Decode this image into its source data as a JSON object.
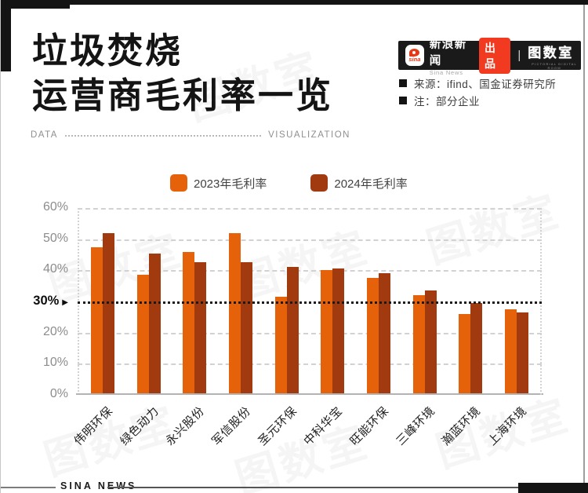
{
  "header": {
    "title_line1": "垃圾焚烧",
    "title_line2": "运营商毛利率一览",
    "divider_left": "DATA",
    "divider_right": "VISUALIZATION"
  },
  "brand": {
    "sina_logo_text": "sina",
    "name_cn": "新浪新闻",
    "name_en": "Sina News",
    "badge": "出品",
    "separator": "|",
    "studio": "图数室",
    "studio_tagline": "PICTORIAL DIGITAL ROOM"
  },
  "meta": {
    "source": "来源：ifind、国金证券研究所",
    "note": "注：部分企业"
  },
  "footer": {
    "label": "SINA NEWS"
  },
  "watermark": {
    "text": "图数室"
  },
  "chart_data": {
    "type": "bar",
    "title": "垃圾焚烧运营商毛利率一览",
    "categories": [
      "伟明环保",
      "绿色动力",
      "永兴股份",
      "军信股份",
      "圣元环保",
      "中科华宝",
      "旺能环保",
      "三峰环境",
      "瀚蓝环境",
      "上海环境"
    ],
    "series": [
      {
        "name": "2023年毛利率",
        "color": "#e5620b",
        "values": [
          47.5,
          38.5,
          46,
          52,
          31.5,
          40,
          37.5,
          32,
          26,
          27.5
        ]
      },
      {
        "name": "2024年毛利率",
        "color": "#a13a0e",
        "values": [
          52,
          45.5,
          42.5,
          42.5,
          41,
          40.5,
          39,
          33.5,
          29.5,
          26.5
        ]
      }
    ],
    "xlabel": "",
    "ylabel": "",
    "ylim": [
      0,
      60
    ],
    "yticks": [
      0,
      10,
      20,
      30,
      40,
      50,
      60
    ],
    "ytick_suffix": "%",
    "reference_line": {
      "value": 30,
      "label": "30%",
      "marker": "▶"
    },
    "grid": "horizontal-dashed",
    "legend_position": "top"
  }
}
